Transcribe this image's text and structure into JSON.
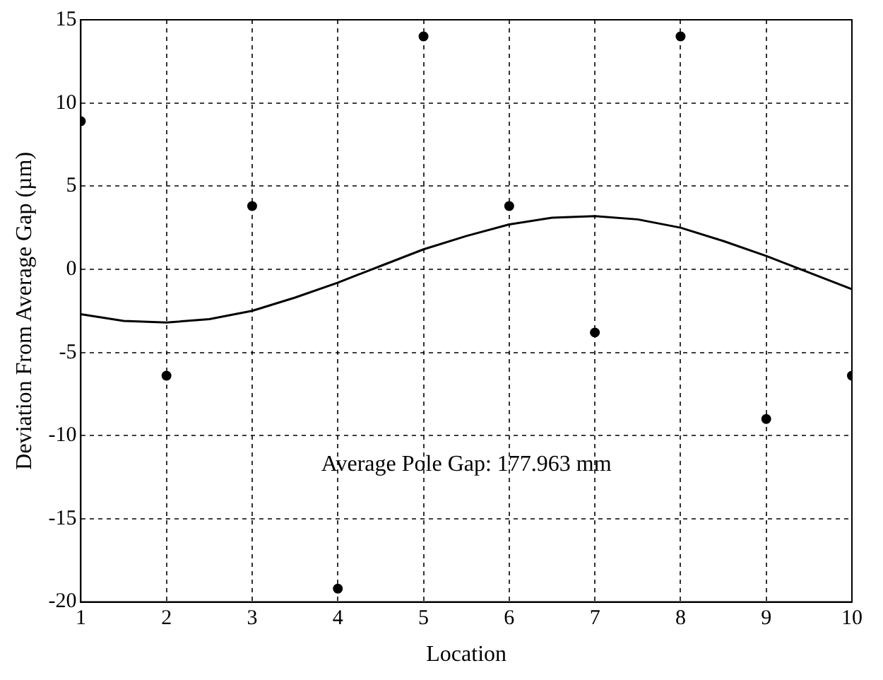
{
  "chart_data": {
    "type": "scatter",
    "xlabel": "Location",
    "ylabel": "Deviation From Average Gap (µm)",
    "xlim": [
      1,
      10
    ],
    "ylim": [
      -20,
      15
    ],
    "xticks": [
      1,
      2,
      3,
      4,
      5,
      6,
      7,
      8,
      9,
      10
    ],
    "yticks": [
      -20,
      -15,
      -10,
      -5,
      0,
      5,
      10,
      15
    ],
    "grid": true,
    "legend": false,
    "annotations": [
      "Average Pole Gap: 177.963 mm"
    ],
    "series": [
      {
        "color": "#000000",
        "marker": "circle",
        "x": [
          1,
          2,
          3,
          4,
          5,
          6,
          7,
          8,
          9,
          10
        ],
        "values": [
          8.9,
          -6.4,
          3.8,
          -19.2,
          14,
          3.8,
          -3.8,
          14,
          -9,
          -6.4
        ]
      },
      {
        "type": "line",
        "color": "#000000",
        "marker": "none",
        "line_style": "solid",
        "x": [
          1,
          1.5,
          2,
          2.5,
          3,
          3.5,
          4,
          4.5,
          5,
          5.5,
          6,
          6.5,
          7,
          7.5,
          8,
          8.5,
          9,
          9.5,
          10
        ],
        "values": [
          -2.7,
          -3.1,
          -3.2,
          -3,
          -2.5,
          -1.7,
          -0.8,
          0.2,
          1.2,
          2,
          2.7,
          3.1,
          3.2,
          3,
          2.5,
          1.7,
          0.8,
          -0.2,
          -1.2
        ]
      }
    ]
  }
}
